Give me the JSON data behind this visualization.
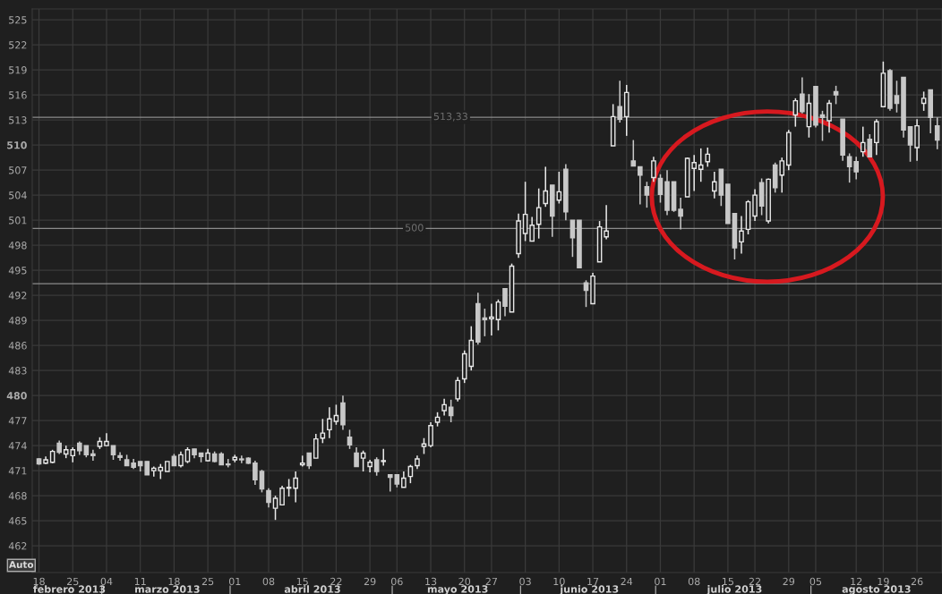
{
  "chart_data": {
    "type": "candlestick",
    "categories": [
      "18",
      null,
      null,
      null,
      null,
      "25",
      null,
      null,
      null,
      null,
      "04",
      null,
      null,
      null,
      null,
      "11",
      null,
      null,
      null,
      null,
      "18",
      null,
      null,
      null,
      null,
      "25",
      null,
      null,
      null,
      "01",
      null,
      null,
      null,
      null,
      "08",
      null,
      null,
      null,
      null,
      "15",
      null,
      null,
      null,
      null,
      "22",
      null,
      null,
      null,
      null,
      "29",
      null,
      null,
      null,
      "06",
      null,
      null,
      null,
      null,
      "13",
      null,
      null,
      null,
      null,
      "20",
      null,
      null,
      null,
      "27",
      null,
      null,
      null,
      null,
      "03",
      null,
      null,
      null,
      null,
      "10",
      null,
      null,
      null,
      null,
      "17",
      null,
      null,
      null,
      null,
      "24",
      null,
      null,
      null,
      null,
      "01",
      null,
      null,
      null,
      null,
      "08",
      null,
      null,
      null,
      null,
      "15",
      null,
      null,
      null,
      "22",
      null,
      null,
      null,
      null,
      "29",
      null,
      null,
      null,
      "05",
      null,
      null,
      null,
      null,
      null,
      "12",
      null,
      null,
      null,
      "19",
      null,
      null,
      null,
      null,
      "26",
      null,
      null,
      null
    ],
    "ohlc": [
      [
        472.4,
        472.5,
        471.7,
        471.8
      ],
      [
        471.9,
        472.7,
        471.8,
        472.3
      ],
      [
        472.0,
        473.5,
        471.9,
        473.3
      ],
      [
        474.3,
        474.6,
        473.0,
        473.2
      ],
      [
        473.0,
        474.0,
        472.5,
        473.5
      ],
      [
        472.8,
        473.8,
        472.0,
        473.5
      ],
      [
        474.3,
        474.5,
        472.9,
        473.4
      ],
      [
        474.0,
        474.0,
        472.6,
        472.9
      ],
      [
        473.0,
        473.5,
        472.2,
        472.8
      ],
      [
        473.9,
        475.0,
        473.6,
        474.5
      ],
      [
        474.0,
        475.5,
        473.9,
        474.5
      ],
      [
        474.0,
        474.0,
        472.3,
        472.9
      ],
      [
        472.8,
        473.2,
        472.2,
        472.6
      ],
      [
        472.3,
        472.9,
        471.6,
        471.6
      ],
      [
        471.9,
        472.4,
        471.2,
        471.4
      ],
      [
        472.1,
        472.1,
        470.9,
        471.6
      ],
      [
        472.1,
        472.1,
        470.5,
        470.5
      ],
      [
        471.0,
        471.5,
        470.3,
        471.3
      ],
      [
        471.0,
        471.8,
        470.0,
        471.4
      ],
      [
        470.9,
        472.1,
        470.9,
        472.1
      ],
      [
        472.7,
        473.0,
        471.6,
        471.6
      ],
      [
        471.6,
        473.3,
        471.4,
        472.9
      ],
      [
        472.1,
        473.8,
        471.9,
        473.5
      ],
      [
        473.6,
        473.6,
        472.5,
        472.9
      ],
      [
        473.1,
        473.1,
        472.0,
        472.7
      ],
      [
        472.2,
        473.6,
        472.1,
        473.1
      ],
      [
        473.0,
        473.3,
        472.0,
        472.1
      ],
      [
        473.0,
        473.2,
        471.7,
        471.7
      ],
      [
        471.8,
        472.4,
        471.4,
        471.7
      ],
      [
        472.3,
        472.9,
        472.0,
        472.6
      ],
      [
        472.4,
        472.8,
        471.9,
        472.3
      ],
      [
        472.5,
        472.6,
        471.8,
        471.9
      ],
      [
        471.9,
        472.2,
        469.3,
        469.9
      ],
      [
        470.9,
        471.1,
        468.4,
        468.8
      ],
      [
        468.6,
        468.9,
        466.6,
        467.2
      ],
      [
        466.5,
        468.0,
        465.1,
        467.7
      ],
      [
        466.9,
        469.2,
        466.9,
        468.9
      ],
      [
        468.9,
        470.0,
        467.9,
        469.0
      ],
      [
        468.9,
        470.9,
        467.2,
        470.1
      ],
      [
        471.7,
        472.8,
        471.5,
        471.9
      ],
      [
        473.1,
        473.1,
        471.2,
        471.6
      ],
      [
        472.5,
        475.4,
        472.5,
        474.8
      ],
      [
        474.9,
        477.2,
        474.3,
        475.5
      ],
      [
        475.9,
        478.6,
        474.9,
        477.2
      ],
      [
        476.9,
        478.9,
        476.5,
        477.6
      ],
      [
        479.1,
        480.0,
        475.9,
        476.5
      ],
      [
        475.0,
        475.9,
        473.6,
        474.1
      ],
      [
        473.1,
        473.8,
        471.5,
        471.5
      ],
      [
        472.5,
        473.4,
        470.9,
        473.1
      ],
      [
        471.5,
        472.3,
        470.8,
        472.0
      ],
      [
        472.3,
        472.6,
        470.4,
        470.9
      ],
      [
        472.1,
        473.6,
        471.6,
        472.2
      ],
      [
        470.5,
        470.5,
        468.5,
        470.2
      ],
      [
        470.5,
        470.5,
        469.0,
        469.4
      ],
      [
        469.0,
        470.9,
        469.0,
        470.1
      ],
      [
        470.3,
        471.7,
        469.5,
        471.5
      ],
      [
        471.6,
        472.8,
        471.2,
        472.4
      ],
      [
        473.9,
        474.9,
        473.0,
        474.2
      ],
      [
        474.0,
        476.8,
        473.8,
        476.4
      ],
      [
        476.8,
        478.0,
        476.3,
        477.4
      ],
      [
        478.2,
        479.6,
        477.6,
        478.9
      ],
      [
        478.6,
        479.5,
        476.8,
        477.6
      ],
      [
        479.6,
        482.2,
        479.3,
        481.8
      ],
      [
        482.0,
        485.4,
        481.5,
        485.0
      ],
      [
        483.5,
        488.3,
        483.0,
        486.6
      ],
      [
        491.0,
        492.3,
        486.1,
        486.4
      ],
      [
        489.3,
        490.4,
        487.1,
        489.1
      ],
      [
        489.2,
        491.0,
        487.2,
        489.4
      ],
      [
        489.1,
        491.5,
        487.8,
        491.2
      ],
      [
        492.8,
        492.8,
        489.5,
        490.7
      ],
      [
        490.0,
        495.8,
        490.0,
        495.5
      ],
      [
        497.0,
        501.8,
        496.5,
        500.9
      ],
      [
        499.4,
        505.6,
        498.5,
        501.7
      ],
      [
        498.5,
        501.4,
        498.5,
        500.4
      ],
      [
        500.5,
        504.8,
        498.8,
        502.5
      ],
      [
        503.0,
        507.4,
        502.6,
        504.5
      ],
      [
        505.2,
        505.2,
        499.0,
        501.5
      ],
      [
        503.4,
        506.8,
        503.0,
        504.4
      ],
      [
        507.1,
        507.7,
        501.0,
        502.0
      ],
      [
        501.0,
        501.0,
        496.6,
        498.9
      ],
      [
        501.0,
        501.0,
        495.3,
        495.3
      ],
      [
        493.5,
        493.8,
        490.6,
        492.6
      ],
      [
        491.0,
        494.7,
        491.0,
        494.3
      ],
      [
        496.0,
        500.9,
        496.0,
        500.2
      ],
      [
        499.0,
        502.8,
        498.7,
        499.7
      ],
      [
        509.9,
        514.9,
        509.9,
        513.4
      ],
      [
        514.6,
        517.7,
        512.7,
        513.1
      ],
      [
        513.4,
        517.2,
        511.1,
        516.3
      ],
      [
        508.1,
        510.6,
        507.5,
        507.5
      ],
      [
        507.4,
        507.4,
        502.9,
        506.4
      ],
      [
        505.0,
        505.6,
        502.5,
        504.0
      ],
      [
        506.1,
        508.6,
        505.6,
        508.1
      ],
      [
        506.0,
        506.5,
        503.1,
        504.1
      ],
      [
        505.6,
        507.0,
        501.6,
        502.2
      ],
      [
        505.6,
        505.6,
        502.0,
        502.2
      ],
      [
        502.3,
        503.7,
        499.9,
        501.5
      ],
      [
        503.8,
        508.5,
        503.8,
        508.4
      ],
      [
        507.2,
        508.8,
        504.5,
        507.9
      ],
      [
        507.1,
        509.6,
        505.6,
        507.6
      ],
      [
        508.0,
        509.7,
        507.4,
        508.9
      ],
      [
        504.5,
        506.8,
        503.6,
        505.6
      ],
      [
        507.1,
        507.1,
        502.7,
        504.0
      ],
      [
        505.3,
        505.3,
        500.6,
        500.6
      ],
      [
        501.8,
        501.8,
        496.3,
        497.7
      ],
      [
        498.4,
        501.5,
        497.0,
        499.7
      ],
      [
        499.9,
        503.4,
        499.3,
        503.2
      ],
      [
        501.5,
        504.7,
        500.9,
        504.0
      ],
      [
        505.5,
        506.0,
        501.6,
        502.7
      ],
      [
        500.9,
        506.0,
        500.6,
        505.9
      ],
      [
        507.6,
        507.9,
        504.3,
        504.9
      ],
      [
        506.4,
        508.5,
        504.3,
        508.1
      ],
      [
        507.6,
        511.8,
        507.0,
        511.5
      ],
      [
        513.6,
        515.6,
        512.2,
        515.3
      ],
      [
        516.1,
        518.1,
        513.8,
        514.0
      ],
      [
        512.2,
        516.1,
        510.9,
        515.0
      ],
      [
        517.0,
        517.0,
        512.1,
        512.4
      ],
      [
        513.6,
        514.1,
        510.5,
        513.3
      ],
      [
        512.9,
        515.4,
        511.5,
        515.0
      ],
      [
        516.4,
        517.1,
        514.9,
        516.0
      ],
      [
        513.1,
        513.1,
        508.1,
        508.8
      ],
      [
        508.6,
        509.0,
        505.5,
        507.4
      ],
      [
        508.0,
        508.6,
        505.9,
        506.8
      ],
      [
        509.2,
        512.2,
        508.6,
        510.3
      ],
      [
        510.7,
        511.3,
        508.6,
        508.6
      ],
      [
        510.3,
        513.1,
        508.8,
        512.8
      ],
      [
        514.6,
        520.0,
        514.6,
        518.6
      ],
      [
        518.9,
        519.1,
        514.1,
        514.4
      ],
      [
        515.9,
        517.7,
        513.9,
        515.0
      ],
      [
        518.1,
        518.1,
        510.9,
        511.8
      ],
      [
        512.2,
        512.2,
        508.0,
        510.0
      ],
      [
        509.7,
        513.1,
        508.1,
        512.3
      ],
      [
        515.0,
        516.4,
        514.1,
        515.6
      ],
      [
        516.6,
        516.6,
        511.4,
        513.3
      ],
      [
        512.3,
        513.3,
        509.5,
        510.6
      ]
    ],
    "ylim": [
      458.8,
      526.3
    ],
    "yticks": [
      462,
      465,
      468,
      471,
      474,
      477,
      480,
      483,
      486,
      489,
      492,
      495,
      498,
      501,
      504,
      507,
      510,
      513,
      516,
      519,
      522,
      525
    ],
    "ref_lines": [
      {
        "axis": "y",
        "value": 513.33,
        "label": "513,33"
      },
      {
        "axis": "y",
        "value": 500,
        "label": "500"
      },
      {
        "axis": "y",
        "value": 493.4
      }
    ],
    "annotations": [
      "febrero 2013",
      "marzo 2013",
      "abril 2013",
      "mayo 2013",
      "junio 2013",
      "julio 2013",
      "agosto 2013",
      "Auto"
    ],
    "grid": true
  }
}
